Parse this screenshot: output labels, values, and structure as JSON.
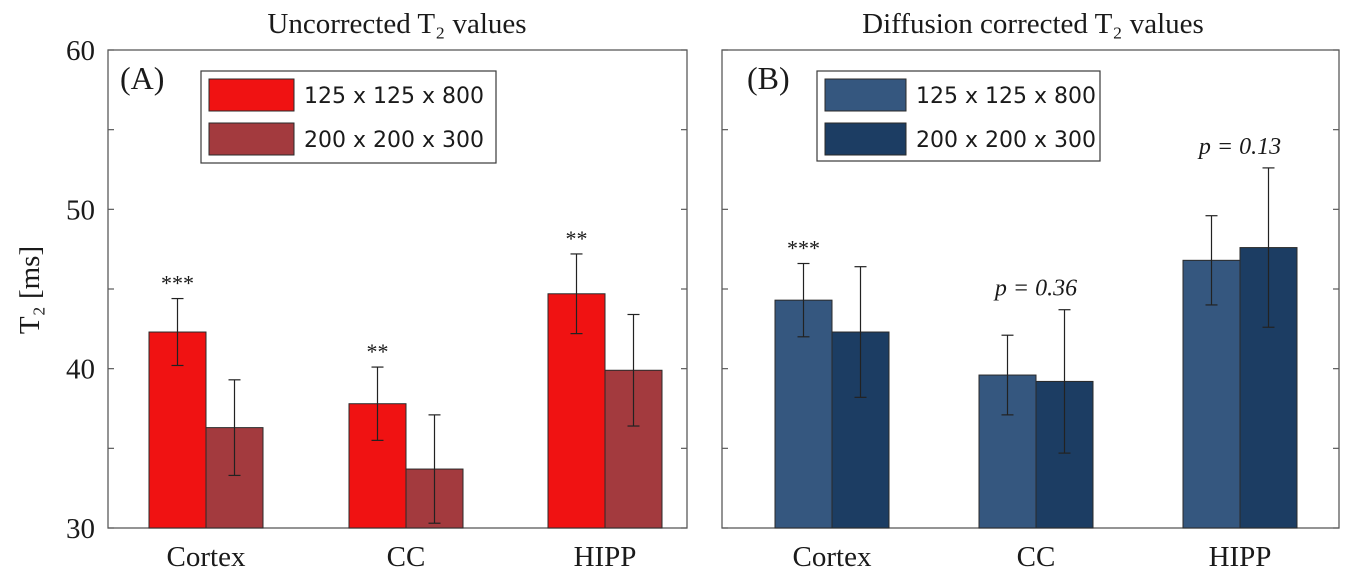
{
  "chart_data": [
    {
      "type": "bar",
      "panel_label": "(A)",
      "title": "Uncorrected T₂ values",
      "ylabel": "T₂ [ms]",
      "ylim": [
        30,
        60
      ],
      "yticks": [
        30,
        40,
        50,
        60
      ],
      "categories": [
        "Cortex",
        "CC",
        "HIPP"
      ],
      "colors": [
        "#f01212",
        "#a33a3e"
      ],
      "legend_position": "top-left",
      "series": [
        {
          "name": "125 x 125 x 800",
          "values": [
            42.3,
            37.8,
            44.7
          ],
          "errors": [
            2.1,
            2.3,
            2.5
          ]
        },
        {
          "name": "200 x 200 x 300",
          "values": [
            36.3,
            33.7,
            39.9
          ],
          "errors": [
            3.0,
            3.4,
            3.5
          ]
        }
      ],
      "annotations": [
        "***",
        "**",
        "**"
      ]
    },
    {
      "type": "bar",
      "panel_label": "(B)",
      "title": "Diffusion corrected T₂ values",
      "ylabel": "",
      "ylim": [
        30,
        60
      ],
      "yticks": [
        30,
        40,
        50,
        60
      ],
      "categories": [
        "Cortex",
        "CC",
        "HIPP"
      ],
      "colors": [
        "#35577f",
        "#1c3d63"
      ],
      "legend_position": "top-left",
      "series": [
        {
          "name": "125 x 125 x 800",
          "values": [
            44.3,
            39.6,
            46.8
          ],
          "errors": [
            2.3,
            2.5,
            2.8
          ]
        },
        {
          "name": "200 x 200 x 300",
          "values": [
            42.3,
            39.2,
            47.6
          ],
          "errors": [
            4.1,
            4.5,
            5.0
          ]
        }
      ],
      "annotations": [
        "***",
        "p = 0.36",
        "p = 0.13"
      ]
    }
  ]
}
